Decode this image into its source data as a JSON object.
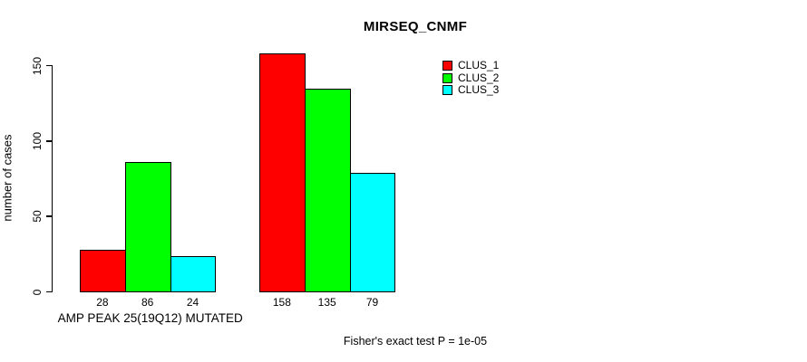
{
  "chart_data": {
    "type": "bar",
    "title": "MIRSEQ_CNMF",
    "ylabel": "number of cases",
    "xlabel": "",
    "ylim": [
      0,
      150
    ],
    "yticks": [
      0,
      50,
      100,
      150
    ],
    "categories": [
      "CLUS_1",
      "CLUS_2",
      "CLUS_3"
    ],
    "series_colors": [
      "#ff0000",
      "#00ff00",
      "#00ffff"
    ],
    "groups": [
      {
        "label": "AMP PEAK 25(19Q12) MUTATED",
        "values": [
          28,
          86,
          24
        ]
      },
      {
        "label": "",
        "values": [
          158,
          135,
          79
        ]
      }
    ],
    "bar_value_labels": [
      [
        "28",
        "86",
        "24"
      ],
      [
        "158",
        "135",
        "79"
      ]
    ],
    "legend": {
      "position": "top-right",
      "entries": [
        {
          "label": "CLUS_1",
          "color": "#ff0000"
        },
        {
          "label": "CLUS_2",
          "color": "#00ff00"
        },
        {
          "label": "CLUS_3",
          "color": "#00ffff"
        }
      ]
    },
    "annotation": "Fisher's exact test P = 1e-05",
    "grid": false,
    "background": "#ffffff",
    "axis_color": "#000000"
  }
}
